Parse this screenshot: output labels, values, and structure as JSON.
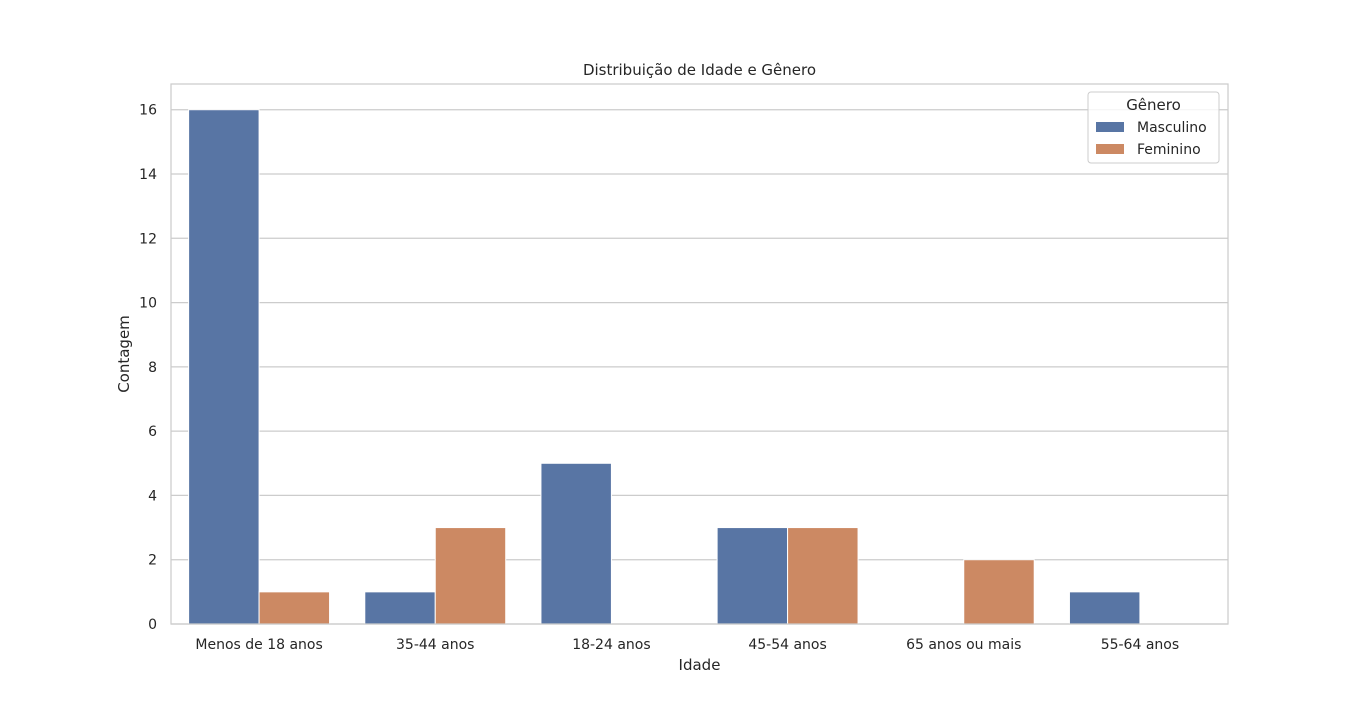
{
  "chart_data": {
    "type": "bar",
    "title": "Distribuição de Idade e Gênero",
    "xlabel": "Idade",
    "ylabel": "Contagem",
    "categories": [
      "Menos de 18 anos",
      "35-44 anos",
      "18-24 anos",
      "45-54 anos",
      "65 anos ou mais",
      "55-64 anos"
    ],
    "series": [
      {
        "name": "Masculino",
        "values": [
          16,
          1,
          5,
          3,
          0,
          1
        ],
        "color": "#5875a4"
      },
      {
        "name": "Feminino",
        "values": [
          1,
          3,
          0,
          3,
          2,
          0
        ],
        "color": "#cc8963"
      }
    ],
    "yticks": [
      0,
      2,
      4,
      6,
      8,
      10,
      12,
      14,
      16
    ],
    "ylim": [
      0,
      16.8
    ],
    "grid": true,
    "legend": {
      "title": "Gênero",
      "placement": "top-right"
    }
  }
}
